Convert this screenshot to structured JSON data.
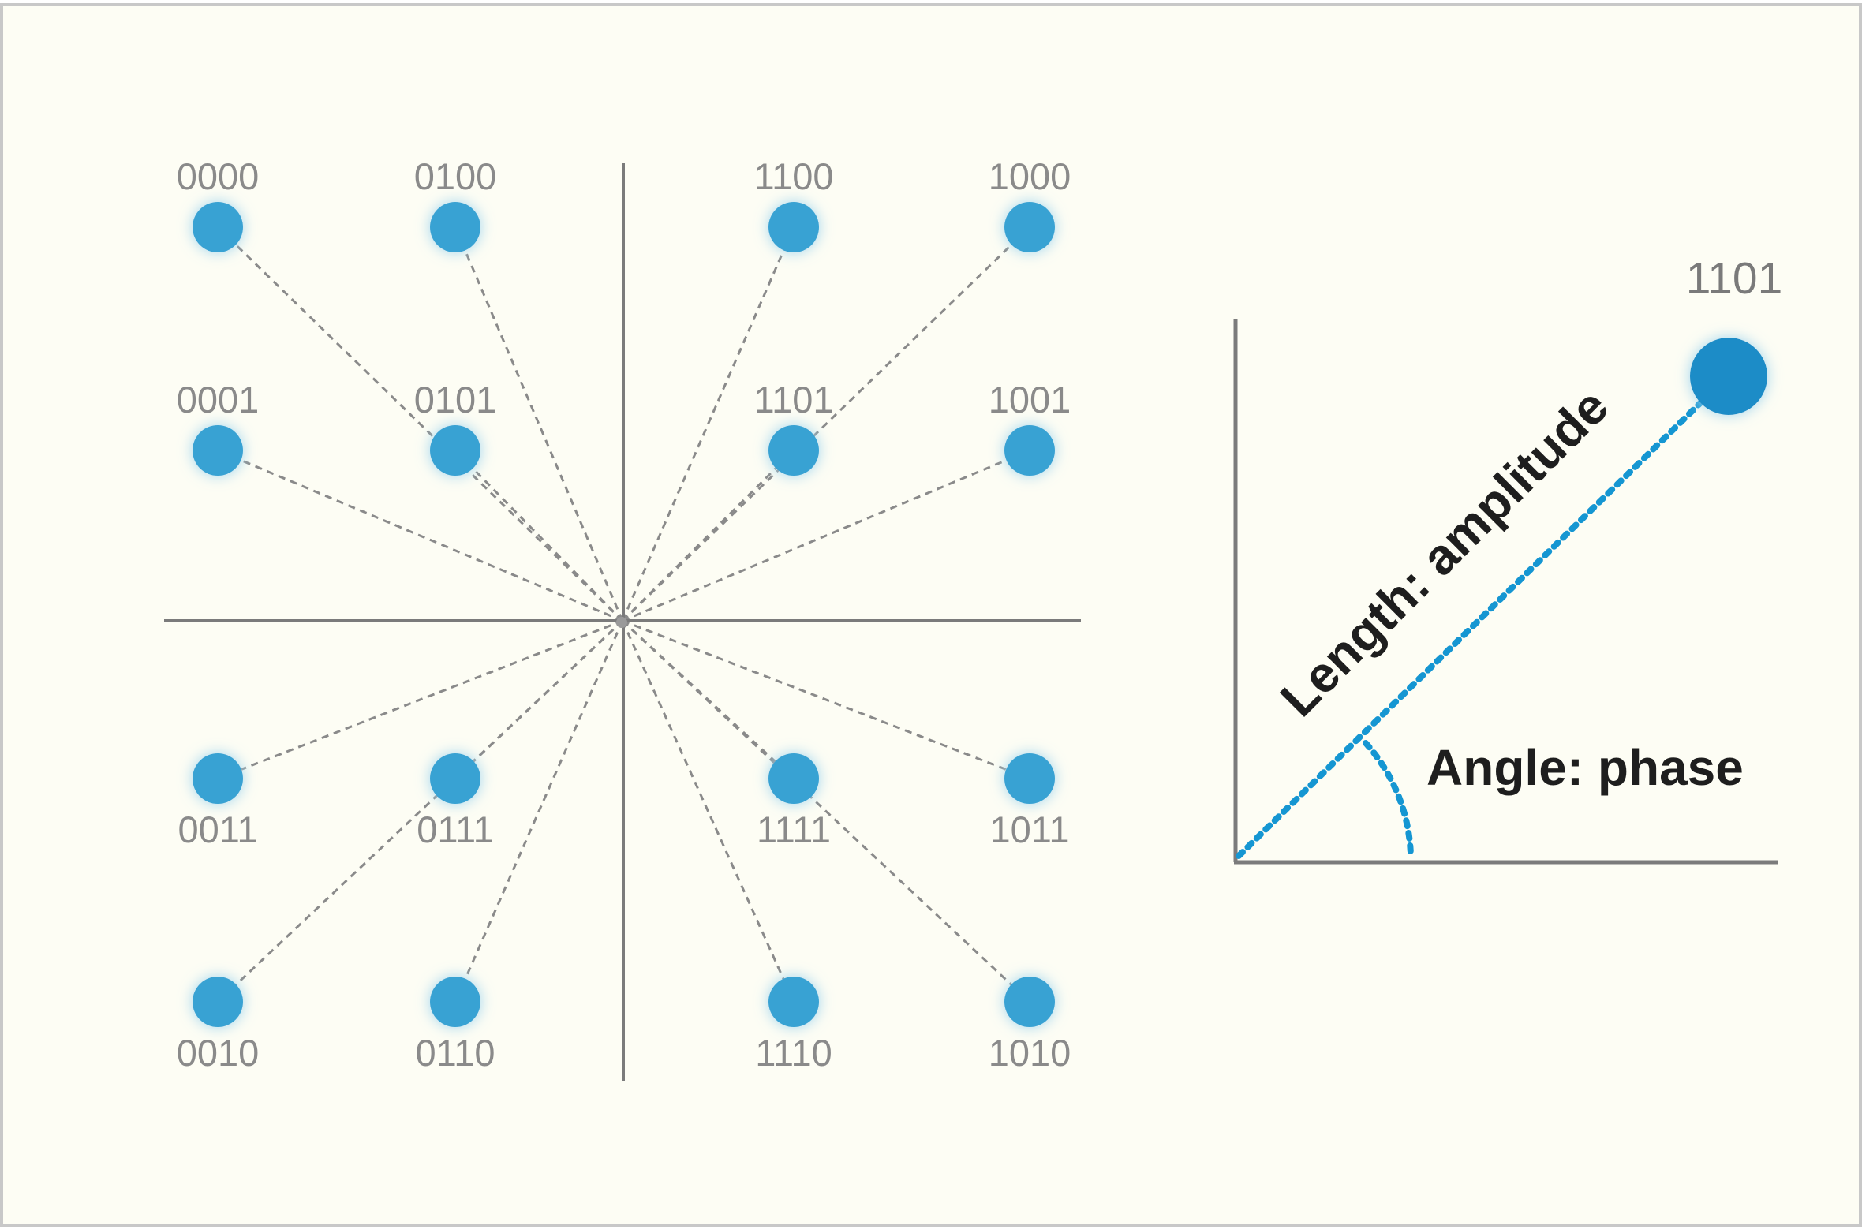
{
  "colors": {
    "background": "#fdfdf4",
    "frame": "#c8c8c8",
    "axis": "#7b7b7b",
    "point": "#38a2d3",
    "point_glow": "#9fd4ee",
    "highlight_point": "#1a8cc7",
    "connector": "#8a8a8a",
    "amplitude_line": "#1596d2"
  },
  "constellation": {
    "points": [
      {
        "code": "0000",
        "i": -3,
        "q": 3
      },
      {
        "code": "0100",
        "i": -1,
        "q": 3
      },
      {
        "code": "1100",
        "i": 1,
        "q": 3
      },
      {
        "code": "1000",
        "i": 3,
        "q": 3
      },
      {
        "code": "0001",
        "i": -3,
        "q": 1
      },
      {
        "code": "0101",
        "i": -1,
        "q": 1
      },
      {
        "code": "1101",
        "i": 1,
        "q": 1
      },
      {
        "code": "1001",
        "i": 3,
        "q": 1
      },
      {
        "code": "0011",
        "i": -3,
        "q": -1
      },
      {
        "code": "0111",
        "i": -1,
        "q": -1
      },
      {
        "code": "1111",
        "i": 1,
        "q": -1
      },
      {
        "code": "1011",
        "i": 3,
        "q": -1
      },
      {
        "code": "0010",
        "i": -3,
        "q": -3
      },
      {
        "code": "0110",
        "i": -1,
        "q": -3
      },
      {
        "code": "1110",
        "i": 1,
        "q": -3
      },
      {
        "code": "1010",
        "i": 3,
        "q": -3
      }
    ]
  },
  "detail": {
    "code": "1101",
    "amplitude_label": "Length: amplitude",
    "phase_label": "Angle: phase"
  }
}
